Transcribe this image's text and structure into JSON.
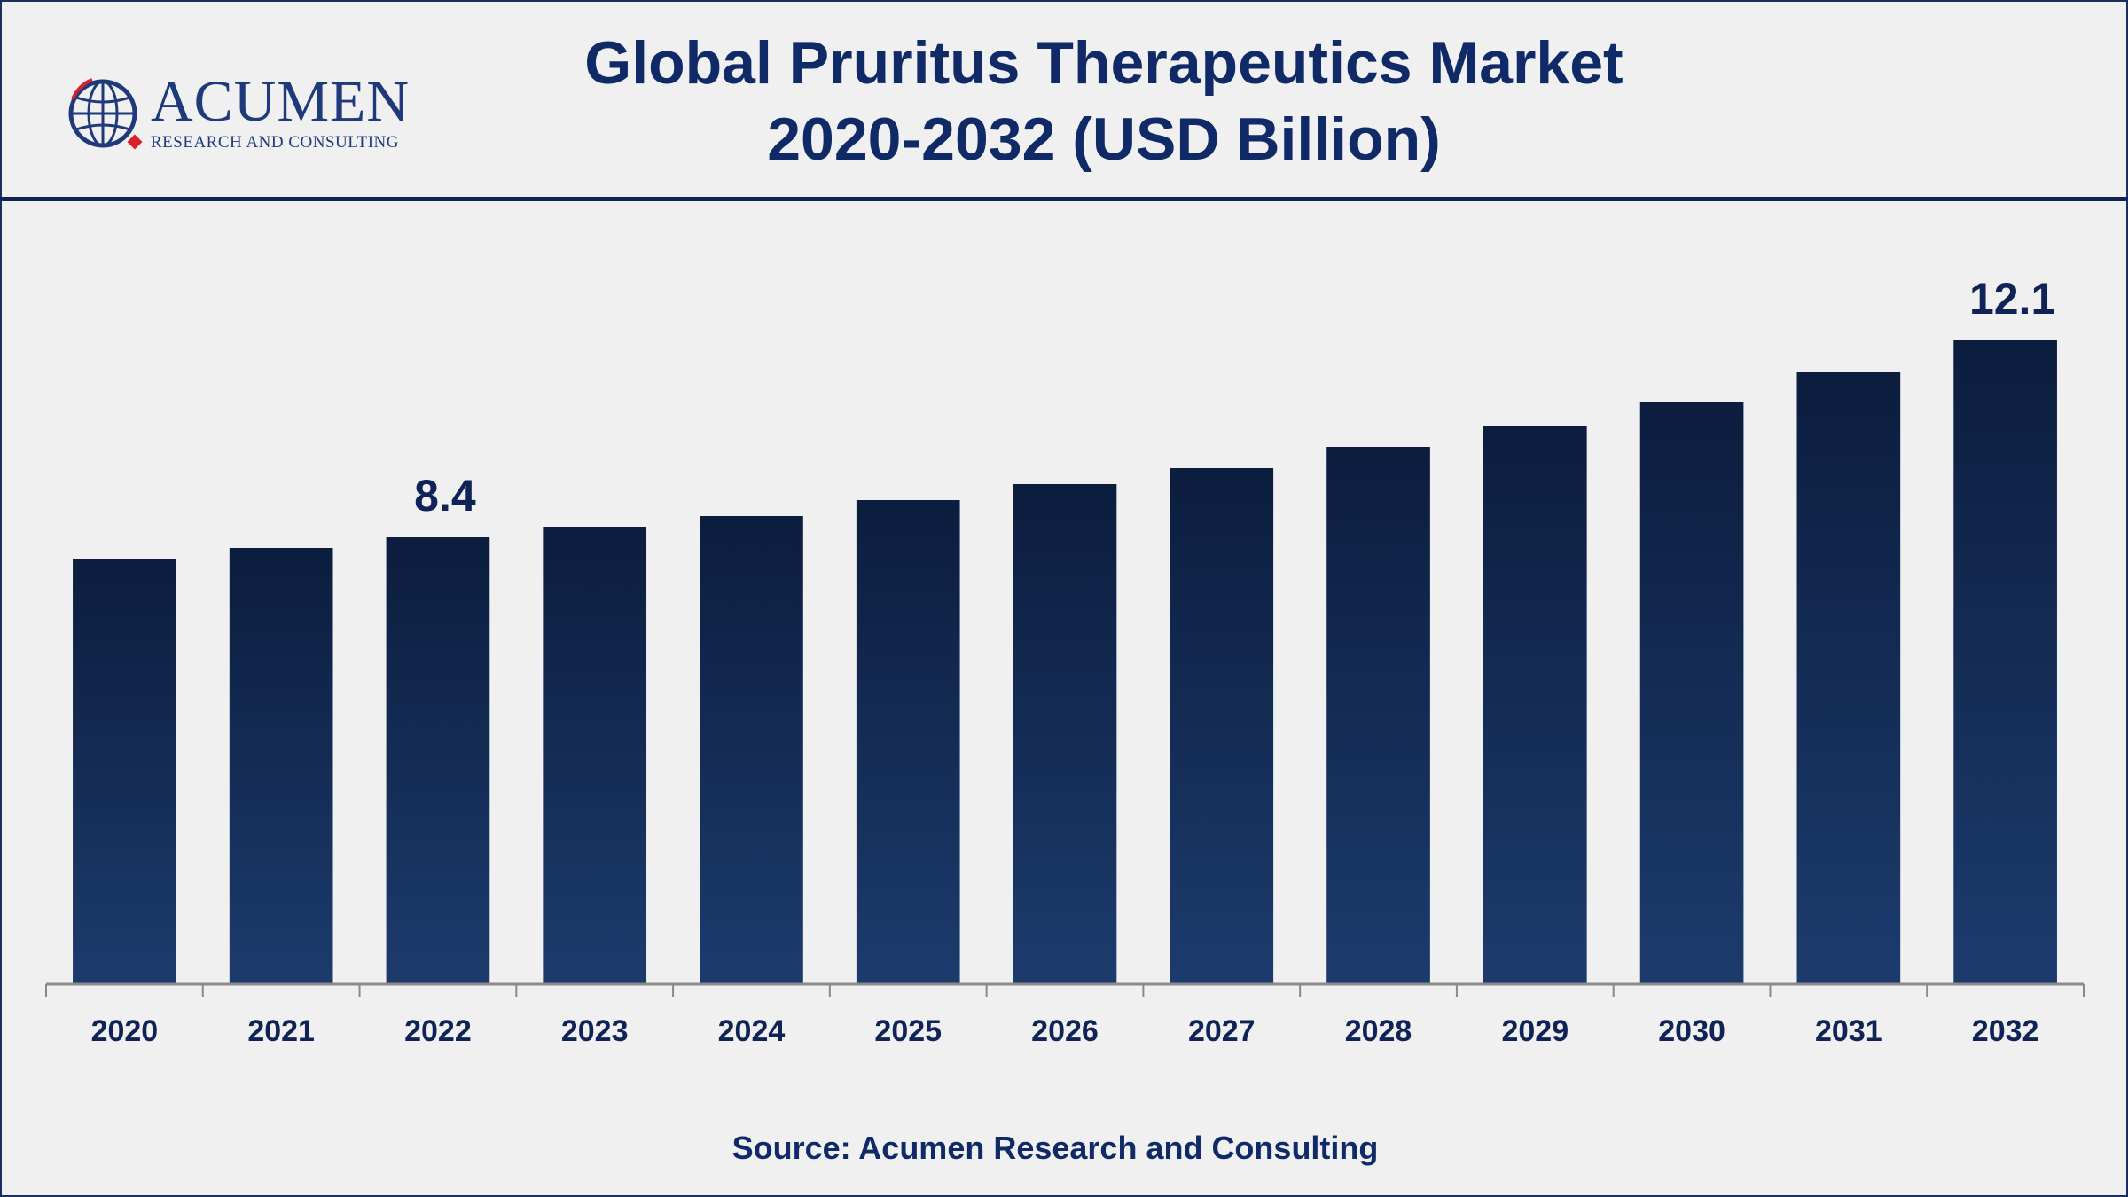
{
  "brand": {
    "name": "ACUMEN",
    "tagline": "RESEARCH AND CONSULTING",
    "colors": {
      "navy": "#1f3a7a",
      "accent_red": "#d8202a"
    }
  },
  "header": {
    "title_line1": "Global Pruritus Therapeutics Market",
    "title_line2": "2020-2032 (USD Billion)"
  },
  "footer": {
    "source": "Source: Acumen Research and Consulting"
  },
  "chart_data": {
    "type": "bar",
    "title": "Global Pruritus Therapeutics Market 2020-2032 (USD Billion)",
    "xlabel": "",
    "ylabel": "",
    "categories": [
      "2020",
      "2021",
      "2022",
      "2023",
      "2024",
      "2025",
      "2026",
      "2027",
      "2028",
      "2029",
      "2030",
      "2031",
      "2032"
    ],
    "values": [
      8.0,
      8.2,
      8.4,
      8.6,
      8.8,
      9.1,
      9.4,
      9.7,
      10.1,
      10.5,
      10.95,
      11.5,
      12.1
    ],
    "data_labels": [
      {
        "category": "2022",
        "text": "8.4"
      },
      {
        "category": "2032",
        "text": "12.1"
      }
    ],
    "ylim": [
      0,
      14
    ],
    "grid": false,
    "legend": "none",
    "bar_color_top": "#0c1d3e",
    "bar_color_bottom": "#1c3b6d",
    "axis_color": "#8a8a8a"
  }
}
